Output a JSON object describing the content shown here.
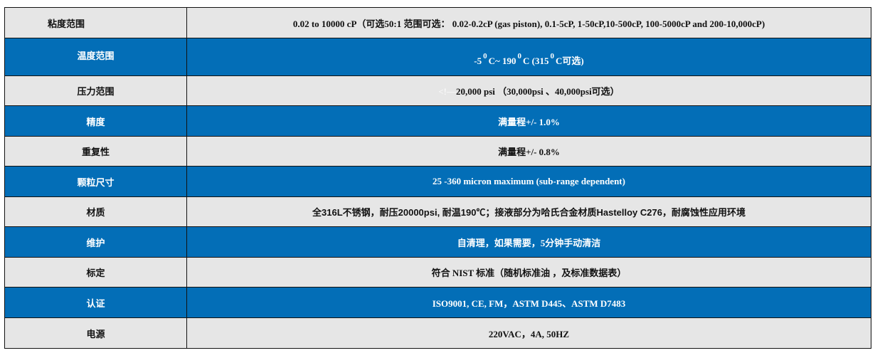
{
  "colors": {
    "blue": "#036eb7",
    "gray": "#e6e6e6"
  },
  "rows": [
    {
      "label": "粘度范围",
      "value": "0.02 to 10000 cP（可选50:1 范围可选： 0.02-0.2cP (gas piston), 0.1-5cP, 1-50cP,10-500cP, 100-5000cP and 200-10,000cP)"
    },
    {
      "label": "温度范围",
      "t1": "-5",
      "deg": "0",
      "t2": "C~ 190",
      "t3": "C (315",
      "t4": "C可选)"
    },
    {
      "label": "压力范围",
      "prefix": "<!—",
      "value": "20,000 psi （30,000psi 、40,000psi可选）"
    },
    {
      "label": "精度",
      "value": "满量程+/- 1.0%"
    },
    {
      "label": "重复性",
      "value": "满量程+/- 0.8%"
    },
    {
      "label": "颗粒尺寸",
      "value": "25 -360 micron maximum (sub-range dependent)"
    },
    {
      "label": "材质",
      "value": "全316L不锈钢，耐压20000psi, 耐温190℃；接液部分为哈氏合金材质Hastelloy C276，耐腐蚀性应用环境"
    },
    {
      "label": "维护",
      "value": "自清理，如果需要，5分钟手动清洁"
    },
    {
      "label": "标定",
      "value": "符合 NIST 标准（随机标准油 ，及标准数据表）"
    },
    {
      "label": "认证",
      "value": "ISO9001, CE, FM，ASTM D445、ASTM D7483"
    },
    {
      "label": "电源",
      "value": "220VAC，4A, 50HZ"
    }
  ]
}
